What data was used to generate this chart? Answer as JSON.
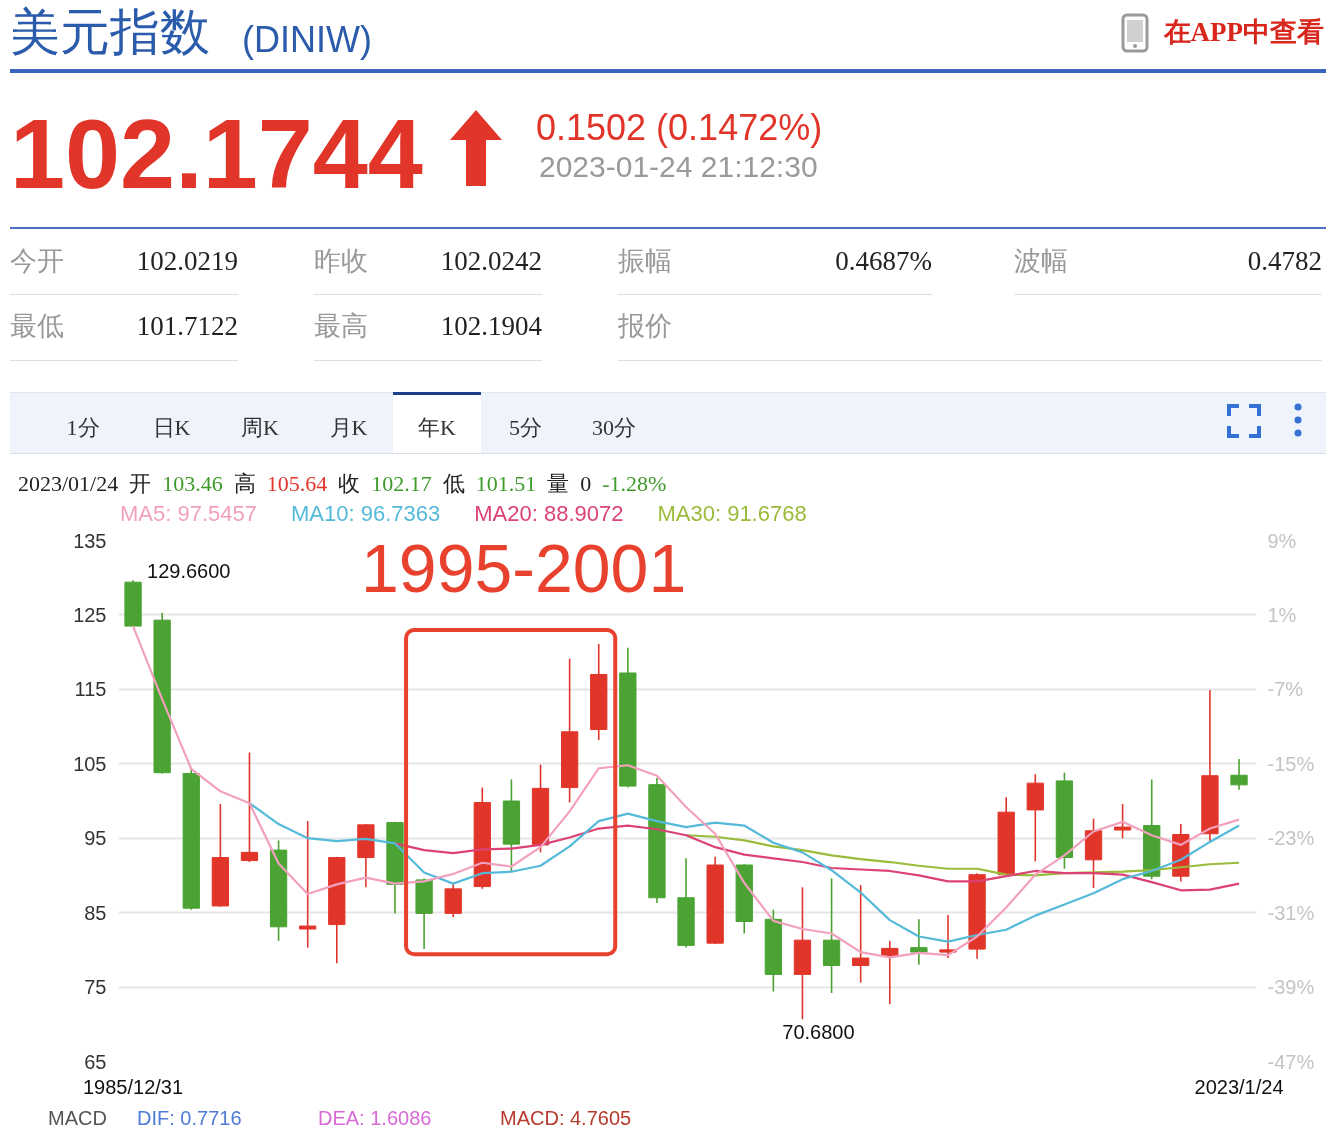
{
  "chart_data": {
    "type": "candlestick",
    "title": "美元指数",
    "subtitle": "(DINIW)",
    "categories": [
      "1985/12/31",
      null,
      null,
      null,
      null,
      null,
      null,
      null,
      null,
      null,
      null,
      null,
      null,
      null,
      null,
      null,
      null,
      null,
      null,
      null,
      null,
      null,
      null,
      null,
      null,
      null,
      null,
      null,
      null,
      null,
      null,
      null,
      null,
      null,
      null,
      null,
      null,
      null,
      "2023/1/24"
    ],
    "ohlc": [
      [
        129.4,
        129.66,
        123.5,
        123.5
      ],
      [
        124.3,
        125.3,
        103.7,
        103.8
      ],
      [
        103.7,
        104.3,
        85.4,
        85.6
      ],
      [
        85.9,
        99.6,
        85.8,
        92.4
      ],
      [
        92.0,
        106.5,
        91.8,
        93.1
      ],
      [
        93.4,
        94.7,
        81.2,
        83.1
      ],
      [
        82.8,
        97.3,
        80.3,
        83.2
      ],
      [
        83.4,
        92.5,
        78.2,
        92.4
      ],
      [
        92.4,
        96.9,
        88.4,
        96.8
      ],
      [
        97.1,
        97.2,
        84.9,
        88.8
      ],
      [
        89.4,
        89.6,
        80.1,
        84.9
      ],
      [
        84.9,
        88.8,
        84.4,
        88.2
      ],
      [
        88.5,
        101.8,
        88.2,
        99.8
      ],
      [
        100.0,
        102.9,
        90.6,
        94.2
      ],
      [
        94.1,
        104.9,
        93.1,
        101.7
      ],
      [
        101.8,
        119.1,
        99.8,
        109.3
      ],
      [
        109.6,
        121.1,
        108.2,
        117.0
      ],
      [
        117.2,
        120.6,
        101.8,
        102.0
      ],
      [
        102.2,
        103.1,
        86.3,
        87.0
      ],
      [
        87.0,
        92.3,
        80.3,
        80.6
      ],
      [
        80.9,
        92.5,
        80.8,
        91.4
      ],
      [
        91.4,
        91.5,
        82.2,
        83.8
      ],
      [
        84.1,
        85.4,
        74.4,
        76.7
      ],
      [
        76.7,
        88.4,
        70.68,
        81.3
      ],
      [
        81.3,
        89.6,
        74.2,
        77.9
      ],
      [
        77.9,
        88.7,
        75.6,
        78.9
      ],
      [
        79.2,
        81.2,
        72.7,
        80.2
      ],
      [
        80.3,
        84.1,
        78.0,
        79.7
      ],
      [
        79.7,
        84.7,
        78.9,
        80.0
      ],
      [
        80.1,
        90.3,
        78.8,
        90.1
      ],
      [
        90.1,
        100.5,
        90.0,
        98.5
      ],
      [
        98.8,
        103.6,
        91.9,
        102.4
      ],
      [
        102.7,
        103.8,
        90.9,
        92.4
      ],
      [
        92.1,
        97.6,
        88.3,
        96.0
      ],
      [
        96.1,
        99.6,
        95.0,
        96.5
      ],
      [
        96.7,
        102.9,
        89.5,
        89.9
      ],
      [
        89.9,
        96.9,
        89.2,
        95.5
      ],
      [
        95.6,
        114.9,
        94.6,
        103.4
      ],
      [
        103.46,
        105.64,
        101.51,
        102.17
      ]
    ],
    "colors": [
      "#4aa333",
      "#4aa333",
      "#4aa333",
      "#e2352a",
      "#e2352a",
      "#4aa333",
      "#e2352a",
      "#e2352a",
      "#e2352a",
      "#4aa333",
      "#4aa333",
      "#e2352a",
      "#e2352a",
      "#4aa333",
      "#e2352a",
      "#e2352a",
      "#e2352a",
      "#4aa333",
      "#4aa333",
      "#4aa333",
      "#e2352a",
      "#4aa333",
      "#4aa333",
      "#e2352a",
      "#4aa333",
      "#e2352a",
      "#e2352a",
      "#4aa333",
      "#e2352a",
      "#e2352a",
      "#e2352a",
      "#e2352a",
      "#4aa333",
      "#e2352a",
      "#e2352a",
      "#4aa333",
      "#e2352a",
      "#e2352a",
      "#4aa333"
    ],
    "series": [
      {
        "type": "line",
        "name": "MA5: 97.5457",
        "color": "#f2a0bd",
        "values": [
          123.5,
          113.7,
          104.3,
          101.3,
          99.7,
          91.6,
          87.5,
          88.8,
          89.7,
          88.9,
          89.2,
          90.2,
          91.7,
          91.2,
          93.8,
          98.6,
          104.4,
          104.8,
          103.4,
          99.2,
          95.6,
          89.0,
          83.9,
          82.8,
          82.2,
          79.7,
          79.0,
          79.6,
          79.3,
          81.8,
          85.7,
          90.1,
          92.7,
          95.9,
          97.2,
          95.4,
          94.1,
          96.3,
          97.5
        ]
      },
      {
        "type": "line",
        "name": "MA10: 96.7363",
        "color": "#55b9d9",
        "values": [
          null,
          null,
          null,
          null,
          99.7,
          96.9,
          95.0,
          94.6,
          94.9,
          94.3,
          90.4,
          88.9,
          90.3,
          90.5,
          91.3,
          93.9,
          97.3,
          98.3,
          97.3,
          96.5,
          97.1,
          96.7,
          94.4,
          93.1,
          90.7,
          87.7,
          84.0,
          81.8,
          81.1,
          82.0,
          82.7,
          84.6,
          86.1,
          87.6,
          89.5,
          90.6,
          92.1,
          94.5,
          96.7
        ]
      },
      {
        "type": "line",
        "name": "MA20: 88.9072",
        "color": "#dc4274",
        "values": [
          null,
          null,
          null,
          null,
          null,
          null,
          null,
          null,
          null,
          94.3,
          93.4,
          93.0,
          93.5,
          93.6,
          94.1,
          95.1,
          96.3,
          96.7,
          96.2,
          95.4,
          93.8,
          92.8,
          92.3,
          91.8,
          91.0,
          90.8,
          90.6,
          90.0,
          89.2,
          89.2,
          89.9,
          90.6,
          90.3,
          90.3,
          90.1,
          89.1,
          88.0,
          88.1,
          88.9
        ]
      },
      {
        "type": "line",
        "name": "MA30: 91.6768",
        "color": "#9bbb3b",
        "values": [
          null,
          null,
          null,
          null,
          null,
          null,
          null,
          null,
          null,
          null,
          null,
          null,
          null,
          null,
          null,
          null,
          null,
          null,
          null,
          95.4,
          95.2,
          94.7,
          93.9,
          93.4,
          92.7,
          92.2,
          91.8,
          91.3,
          90.9,
          90.9,
          90.1,
          90.0,
          90.3,
          90.4,
          90.5,
          90.7,
          91.1,
          91.5,
          91.7
        ]
      }
    ],
    "ylim": [
      65,
      135
    ],
    "yticks": [
      65,
      75,
      85,
      95,
      105,
      115,
      125,
      135
    ],
    "y2lim": [
      -47,
      9
    ],
    "y2ticks": [
      {
        "value": -47,
        "label": "-47%"
      },
      {
        "value": -39,
        "label": "-39%"
      },
      {
        "value": -31,
        "label": "-31%"
      },
      {
        "value": -23,
        "label": "-23%"
      },
      {
        "value": -15,
        "label": "-15%"
      },
      {
        "value": -7,
        "label": "-7%"
      },
      {
        "value": 1,
        "label": "1%"
      },
      {
        "value": 9,
        "label": "9%"
      }
    ],
    "grid": "y",
    "annotations": [
      "在APP中查看",
      "102.1744",
      "0.1502 (0.1472%)",
      "2023-01-24 21:12:30",
      "今开",
      "102.0219",
      "昨收",
      "102.0242",
      "振幅",
      "0.4687%",
      "波幅",
      "0.4782",
      "最低",
      "101.7122",
      "最高",
      "102.1904",
      "报价",
      "1分",
      "日K",
      "周K",
      "月K",
      "年K",
      "5分",
      "30分",
      "2023/01/24",
      "开",
      "103.46",
      "高",
      "105.64",
      "收",
      "102.17",
      "低",
      "101.51",
      "量",
      "0",
      "-1.28%",
      "1995-2001",
      {
        "text": "129.6600",
        "x": "1985/12/31",
        "y": 129.66
      },
      "70.6800",
      "MACD",
      "DIF: 0.7716",
      "DEA: 1.6086",
      "MACD: 4.7605"
    ]
  }
}
